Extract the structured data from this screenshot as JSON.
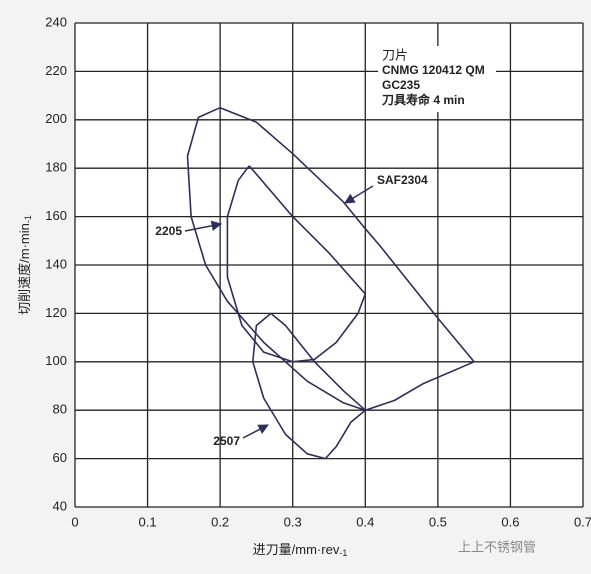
{
  "chart_data": {
    "type": "line",
    "x_label": {
      "text": "进刀量/mm·rev",
      "sup": "-1"
    },
    "y_label": {
      "text": "切削速度/m·min",
      "sup": "-1"
    },
    "annotation_lines": [
      "刀片",
      "CNMG 120412 QM",
      "GC235",
      "刀具寿命 4 min"
    ],
    "watermark": "上上不锈钢管",
    "xlim": [
      0,
      0.7
    ],
    "xticks": [
      0,
      0.1,
      0.2,
      0.3,
      0.4,
      0.5,
      0.6,
      0.7
    ],
    "ylim": [
      40,
      240
    ],
    "yticks": [
      40,
      60,
      80,
      100,
      120,
      140,
      160,
      180,
      200,
      220,
      240
    ],
    "grid": true,
    "color": "#2e2e5c",
    "series": [
      {
        "name": "SAF2304",
        "x": [
          0.55,
          0.5,
          0.42,
          0.4,
          0.37,
          0.3,
          0.25,
          0.2,
          0.17,
          0.155,
          0.16,
          0.18,
          0.21,
          0.26,
          0.32,
          0.37,
          0.4,
          0.44,
          0.48,
          0.55
        ],
        "values": [
          100,
          118,
          148,
          155,
          166,
          186,
          199,
          205,
          201,
          185,
          160,
          140,
          125,
          108,
          92,
          83,
          80,
          84,
          91,
          100
        ]
      },
      {
        "name": "2205",
        "x": [
          0.24,
          0.3,
          0.35,
          0.4,
          0.39,
          0.36,
          0.33,
          0.3,
          0.26,
          0.23,
          0.21,
          0.21,
          0.225,
          0.24
        ],
        "values": [
          181,
          160,
          145,
          128,
          120,
          108,
          101,
          100,
          104,
          115,
          135,
          160,
          175,
          181
        ]
      },
      {
        "name": "2507",
        "x": [
          0.27,
          0.29,
          0.33,
          0.37,
          0.4,
          0.38,
          0.36,
          0.345,
          0.32,
          0.29,
          0.26,
          0.245,
          0.25,
          0.27
        ],
        "values": [
          120,
          115,
          100,
          88,
          80,
          75,
          65,
          60,
          62,
          70,
          85,
          100,
          115,
          120
        ]
      }
    ]
  }
}
